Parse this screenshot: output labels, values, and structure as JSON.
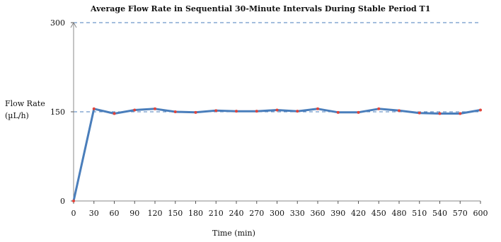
{
  "chart_data": {
    "type": "line",
    "title": "Average Flow Rate in Sequential 30-Minute Intervals During Stable Period T1",
    "xlabel": "Time (min)",
    "ylabel_lines": [
      "Flow Rate",
      "(µL/h)"
    ],
    "ylim": [
      0,
      300
    ],
    "yticks": [
      0,
      150,
      300
    ],
    "xlim": [
      0,
      600
    ],
    "xticks": [
      0,
      30,
      60,
      90,
      120,
      150,
      180,
      210,
      240,
      270,
      300,
      330,
      360,
      390,
      420,
      450,
      480,
      510,
      540,
      570,
      600
    ],
    "reference_lines": [
      150,
      300
    ],
    "grid": false,
    "colors": {
      "line": "#4a7ebb",
      "marker": "#e0443b",
      "reference": "#4a7ebb",
      "axis": "#888888"
    },
    "x": [
      0,
      30,
      60,
      90,
      120,
      150,
      180,
      210,
      240,
      270,
      300,
      330,
      360,
      390,
      420,
      450,
      480,
      510,
      540,
      570,
      600
    ],
    "y": [
      0,
      155,
      147,
      153,
      155,
      150,
      149,
      152,
      151,
      151,
      153,
      151,
      155,
      149,
      149,
      155,
      152,
      148,
      147,
      147,
      153
    ]
  }
}
